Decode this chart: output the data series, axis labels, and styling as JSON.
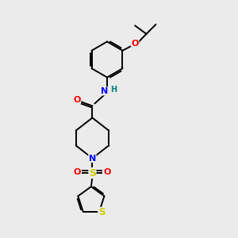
{
  "background_color": "#ebebeb",
  "bond_color": "#000000",
  "atom_colors": {
    "O": "#ff0000",
    "N": "#0000ff",
    "S": "#cccc00",
    "H": "#008080",
    "C": "#000000"
  },
  "figsize": [
    3.0,
    3.0
  ],
  "dpi": 100
}
